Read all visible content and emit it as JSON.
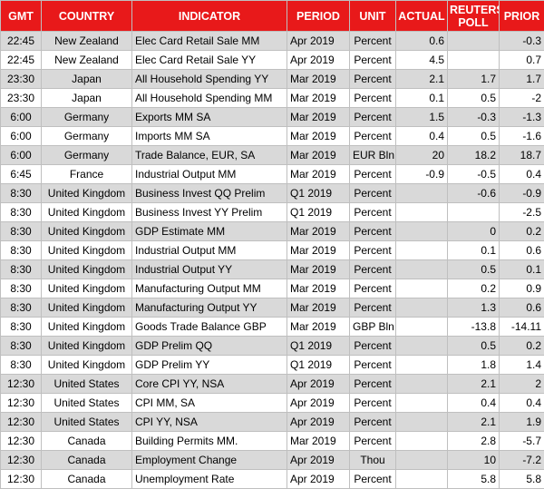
{
  "table": {
    "header": [
      "GMT",
      "COUNTRY",
      "INDICATOR",
      "PERIOD",
      "UNIT",
      "ACTUAL",
      "REUTERS POLL",
      "PRIOR"
    ],
    "rows": [
      [
        "22:45",
        "New Zealand",
        "Elec Card Retail Sale MM",
        "Apr 2019",
        "Percent",
        "0.6",
        null,
        "-0.3"
      ],
      [
        "22:45",
        "New Zealand",
        "Elec Card Retail Sale YY",
        "Apr 2019",
        "Percent",
        "4.5",
        null,
        "0.7"
      ],
      [
        "23:30",
        "Japan",
        "All Household Spending YY",
        "Mar 2019",
        "Percent",
        "2.1",
        "1.7",
        "1.7"
      ],
      [
        "23:30",
        "Japan",
        "All Household Spending MM",
        "Mar 2019",
        "Percent",
        "0.1",
        "0.5",
        "-2"
      ],
      [
        "6:00",
        "Germany",
        "Exports MM SA",
        "Mar 2019",
        "Percent",
        "1.5",
        "-0.3",
        "-1.3"
      ],
      [
        "6:00",
        "Germany",
        "Imports MM SA",
        "Mar 2019",
        "Percent",
        "0.4",
        "0.5",
        "-1.6"
      ],
      [
        "6:00",
        "Germany",
        "Trade Balance, EUR, SA",
        "Mar 2019",
        "EUR Bln",
        "20",
        "18.2",
        "18.7"
      ],
      [
        "6:45",
        "France",
        "Industrial Output MM",
        "Mar 2019",
        "Percent",
        "-0.9",
        "-0.5",
        "0.4"
      ],
      [
        "8:30",
        "United Kingdom",
        "Business Invest QQ Prelim",
        "Q1 2019",
        "Percent",
        null,
        "-0.6",
        "-0.9"
      ],
      [
        "8:30",
        "United Kingdom",
        "Business Invest YY Prelim",
        "Q1 2019",
        "Percent",
        null,
        null,
        "-2.5"
      ],
      [
        "8:30",
        "United Kingdom",
        "GDP Estimate MM",
        "Mar 2019",
        "Percent",
        null,
        "0",
        "0.2"
      ],
      [
        "8:30",
        "United Kingdom",
        "Industrial Output MM",
        "Mar 2019",
        "Percent",
        null,
        "0.1",
        "0.6"
      ],
      [
        "8:30",
        "United Kingdom",
        "Industrial Output YY",
        "Mar 2019",
        "Percent",
        null,
        "0.5",
        "0.1"
      ],
      [
        "8:30",
        "United Kingdom",
        "Manufacturing Output MM",
        "Mar 2019",
        "Percent",
        null,
        "0.2",
        "0.9"
      ],
      [
        "8:30",
        "United Kingdom",
        "Manufacturing Output YY",
        "Mar 2019",
        "Percent",
        null,
        "1.3",
        "0.6"
      ],
      [
        "8:30",
        "United Kingdom",
        "Goods Trade Balance GBP",
        "Mar 2019",
        "GBP Bln",
        null,
        "-13.8",
        "-14.11"
      ],
      [
        "8:30",
        "United Kingdom",
        "GDP Prelim QQ",
        "Q1 2019",
        "Percent",
        null,
        "0.5",
        "0.2"
      ],
      [
        "8:30",
        "United Kingdom",
        "GDP Prelim YY",
        "Q1 2019",
        "Percent",
        null,
        "1.8",
        "1.4"
      ],
      [
        "12:30",
        "United States",
        "Core CPI YY, NSA",
        "Apr 2019",
        "Percent",
        null,
        "2.1",
        "2"
      ],
      [
        "12:30",
        "United States",
        "CPI MM, SA",
        "Apr 2019",
        "Percent",
        null,
        "0.4",
        "0.4"
      ],
      [
        "12:30",
        "United States",
        "CPI YY, NSA",
        "Apr 2019",
        "Percent",
        null,
        "2.1",
        "1.9"
      ],
      [
        "12:30",
        "Canada",
        "Building Permits MM.",
        "Mar 2019",
        "Percent",
        null,
        "2.8",
        "-5.7"
      ],
      [
        "12:30",
        "Canada",
        "Employment Change",
        "Apr 2019",
        "Thou",
        null,
        "10",
        "-7.2"
      ],
      [
        "12:30",
        "Canada",
        "Unemployment Rate",
        "Apr 2019",
        "Percent",
        null,
        "5.8",
        "5.8"
      ]
    ]
  }
}
